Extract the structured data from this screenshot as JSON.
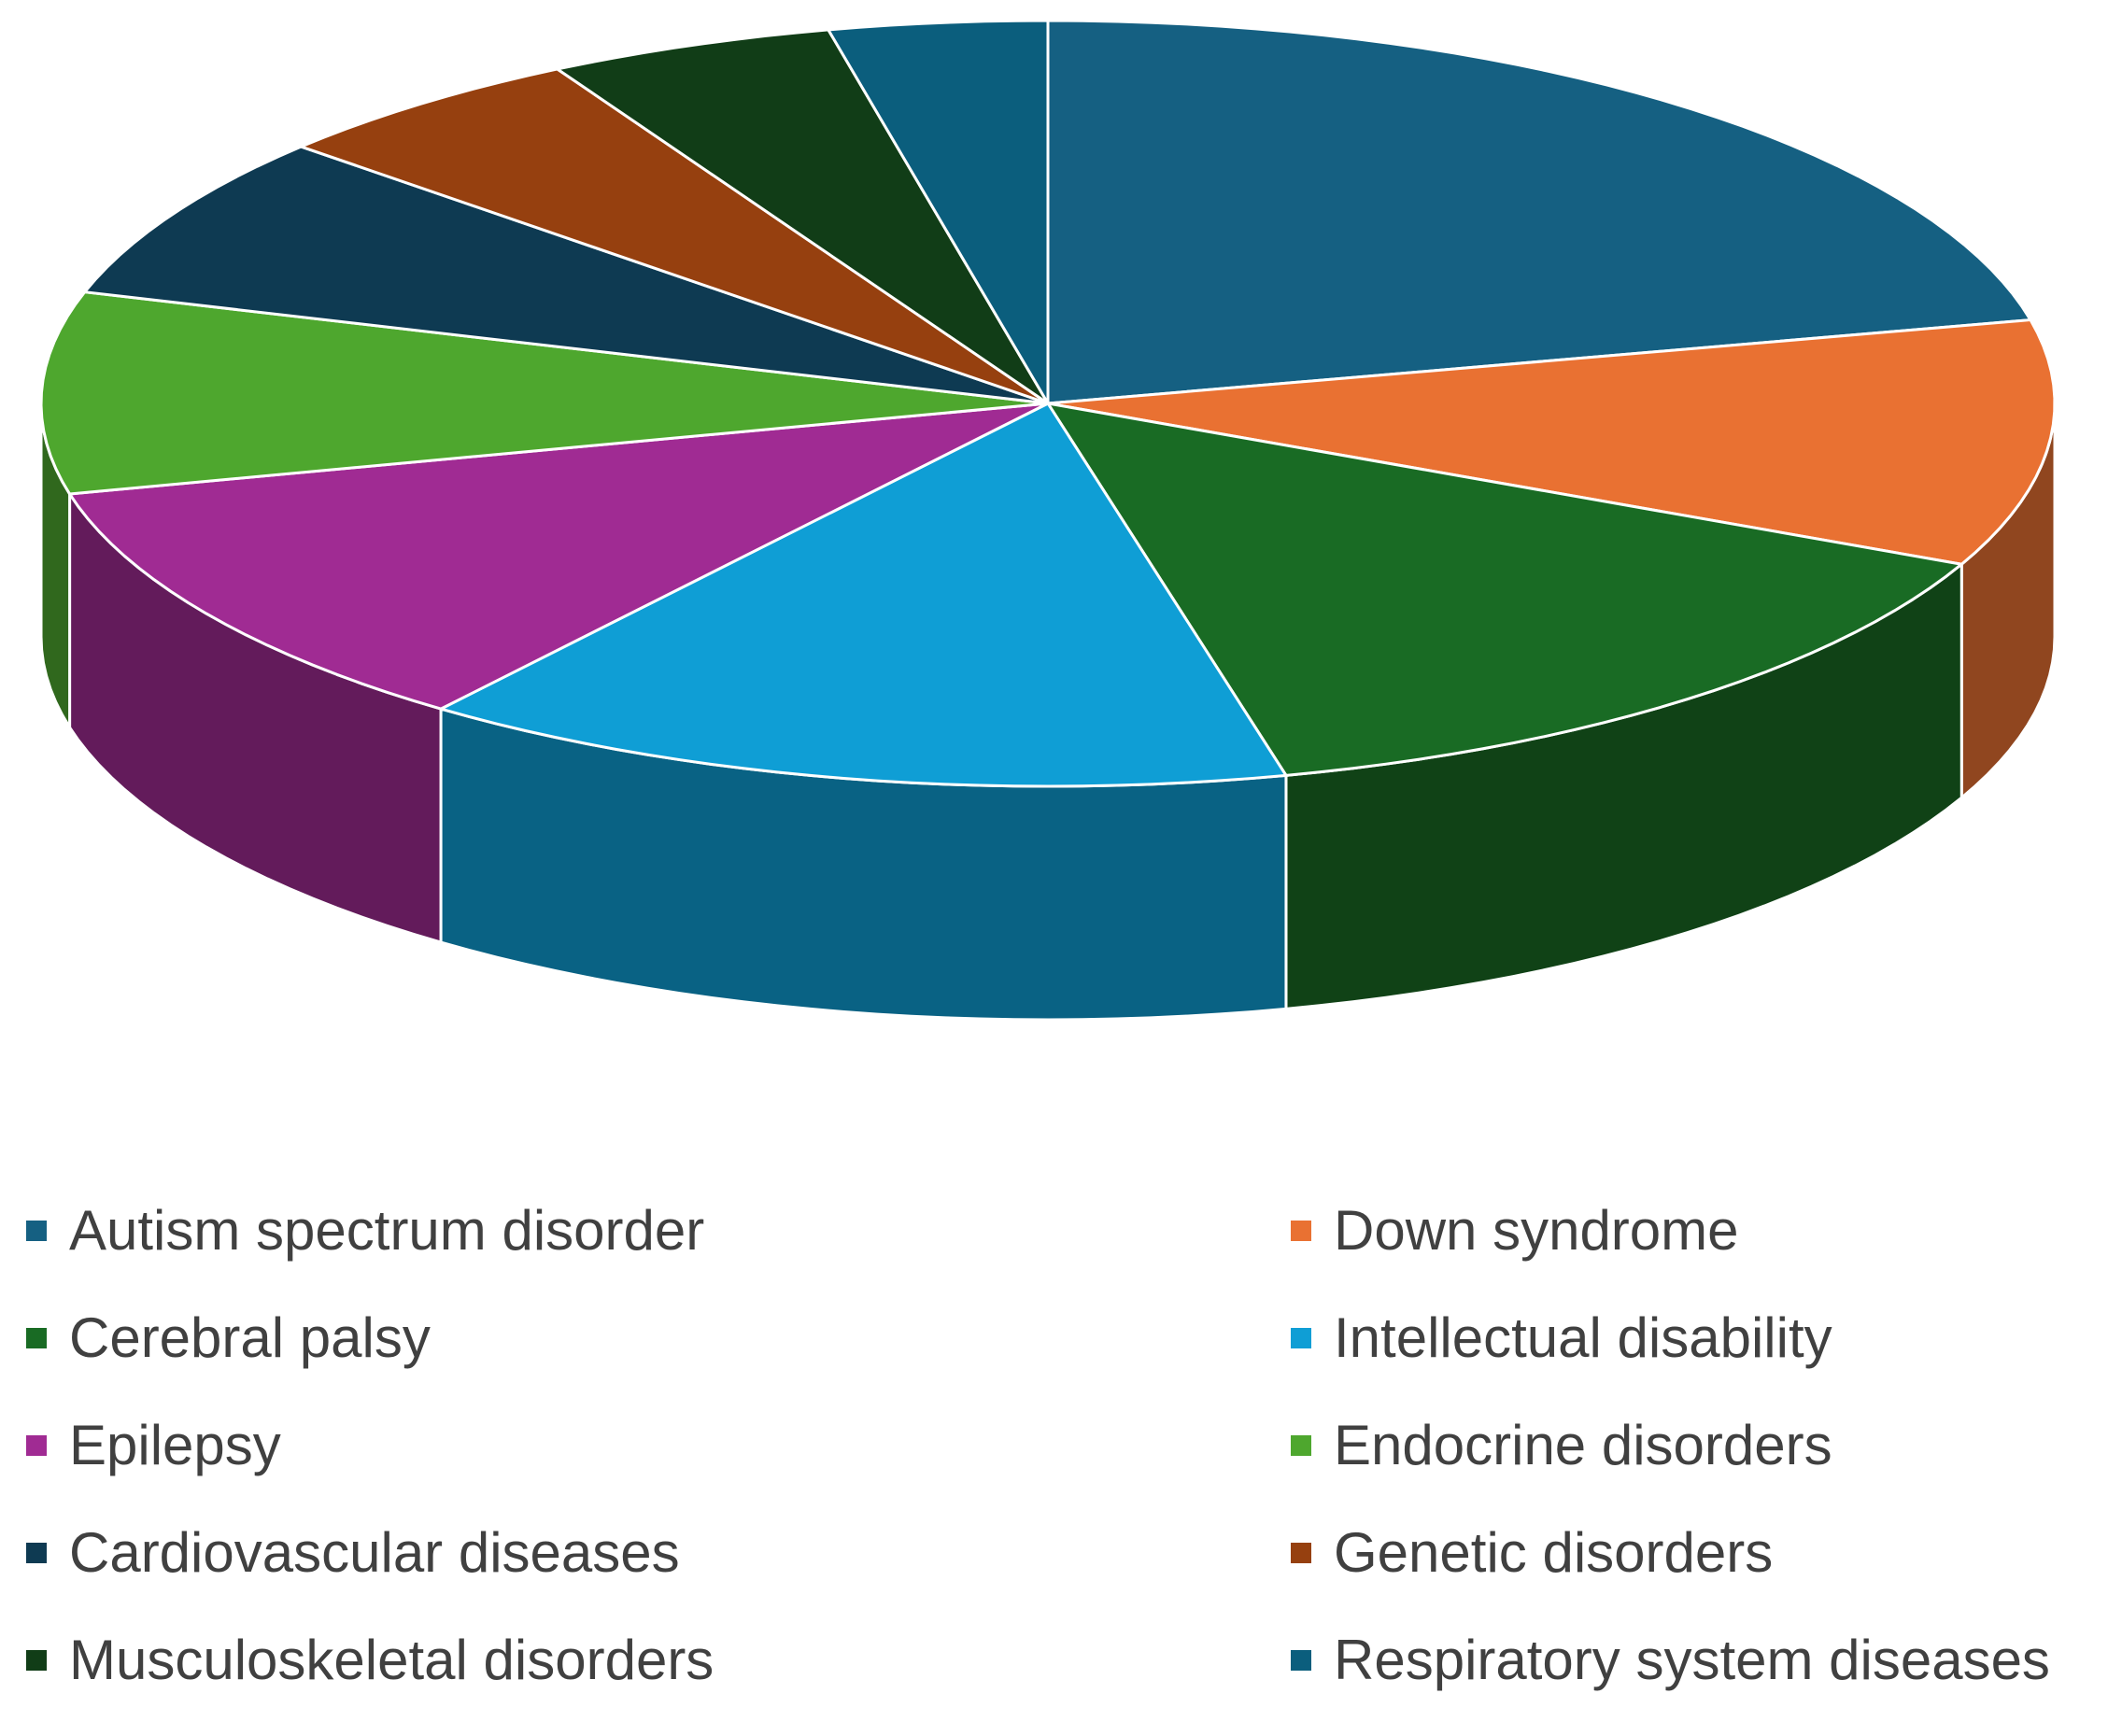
{
  "chart_data": {
    "type": "pie",
    "style": "3d",
    "legend_position": "bottom",
    "series": [
      {
        "name": "Autism spectrum disorder",
        "value": 21.5,
        "color": "#156082"
      },
      {
        "name": "Down syndrome",
        "value": 10.4,
        "color": "#E97132"
      },
      {
        "name": "Cerebral palsy",
        "value": 14.3,
        "color": "#196B24"
      },
      {
        "name": "Intellectual disability",
        "value": 14.1,
        "color": "#0F9ED5"
      },
      {
        "name": "Epilepsy",
        "value": 10.9,
        "color": "#A02B93"
      },
      {
        "name": "Endocrine disorders",
        "value": 8.5,
        "color": "#4EA72E"
      },
      {
        "name": "Cardiovascular diseases",
        "value": 7.0,
        "color": "#0E3A52"
      },
      {
        "name": "Genetic disorders",
        "value": 5.2,
        "color": "#96400F"
      },
      {
        "name": "Musculoskeletal disorders",
        "value": 4.6,
        "color": "#113D17"
      },
      {
        "name": "Respiratory system diseases",
        "value": 3.5,
        "color": "#0B5E7D"
      }
    ]
  }
}
